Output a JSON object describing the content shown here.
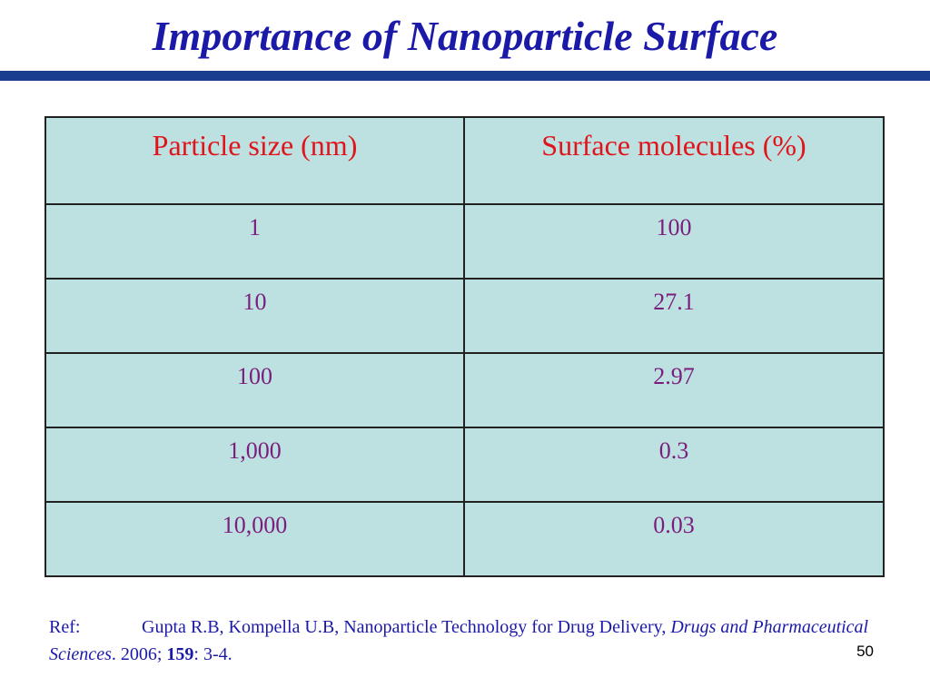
{
  "slide": {
    "title": "Importance of Nanoparticle Surface",
    "page_number": "50",
    "accent_colors": {
      "title": "#1b1aa8",
      "rule": "#1a3d8f",
      "header_text": "#e0141b",
      "cell_text": "#7b1d7d",
      "table_fill": "#bde0e1"
    }
  },
  "table": {
    "headers": [
      "Particle size (nm)",
      "Surface molecules (%)"
    ],
    "rows": [
      [
        "1",
        "100"
      ],
      [
        "10",
        "27.1"
      ],
      [
        "100",
        "2.97"
      ],
      [
        "1,000",
        "0.3"
      ],
      [
        "10,000",
        "0.03"
      ]
    ]
  },
  "reference": {
    "label": "Ref:",
    "authors_and_title": "Gupta R.B, Kompella U.B, Nanoparticle Technology for Drug Delivery, ",
    "journal": "Drugs and Pharmaceutical Sciences",
    "year_text": ". 2006; ",
    "volume": "159",
    "pages": ": 3-4."
  }
}
